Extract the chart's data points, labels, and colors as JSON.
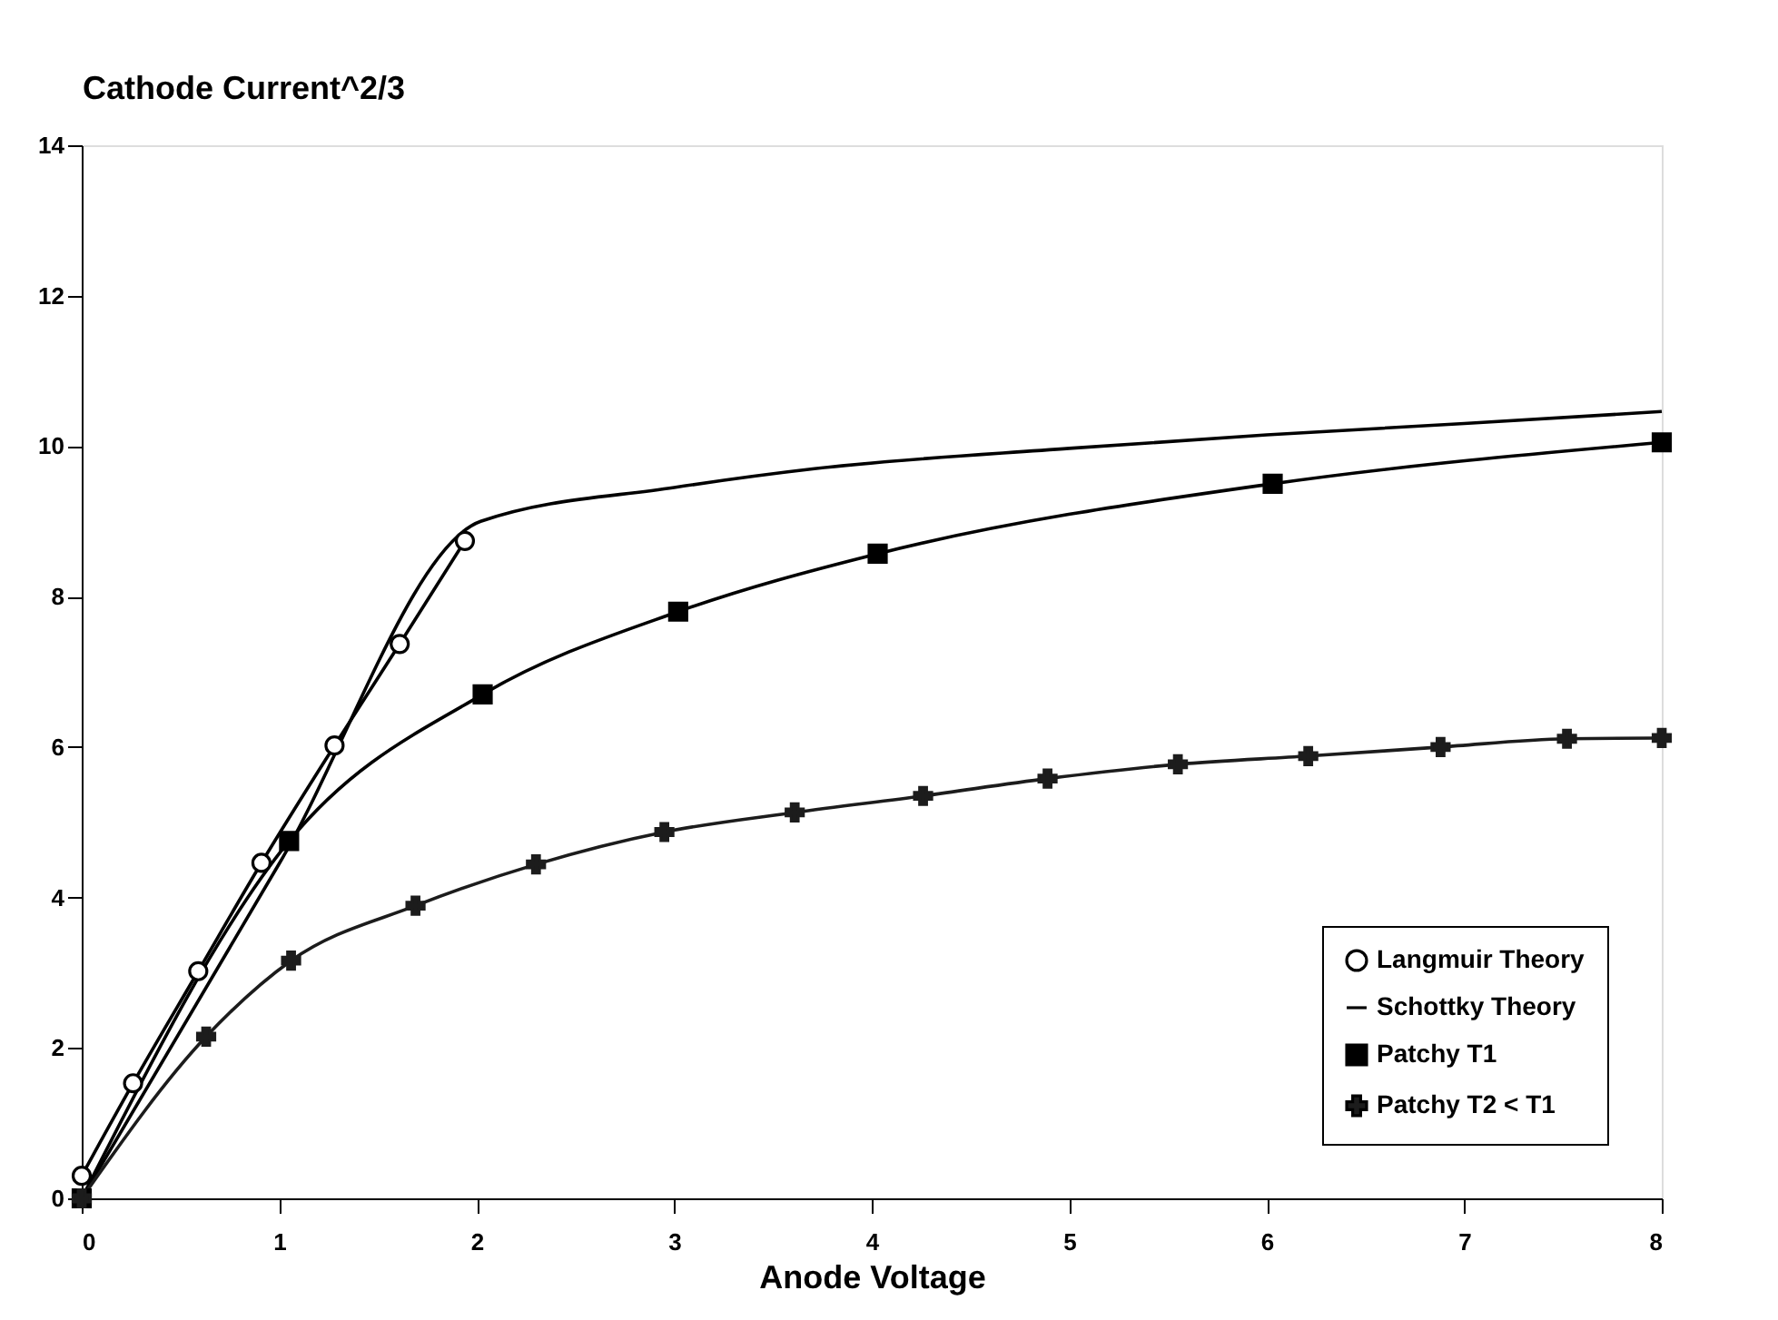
{
  "chart_data": {
    "type": "line",
    "xlabel": "Anode Voltage",
    "ylabel": "Cathode Current^2/3",
    "xlim": [
      0,
      8
    ],
    "xticks": [
      0,
      1,
      2,
      3,
      4,
      5,
      6,
      7,
      8
    ],
    "ylim": [
      0,
      14
    ],
    "yticks": [
      0,
      2,
      4,
      6,
      8,
      10,
      12,
      14
    ],
    "grid": false,
    "legend": "bottom right",
    "line_style": "solid",
    "series": [
      {
        "name": "Langmuir Theory",
        "color": "#000000",
        "marker": "circle",
        "x": [
          0,
          0.26,
          0.59,
          0.91,
          1.28,
          1.61,
          1.94
        ],
        "values": [
          0.3,
          1.53,
          3.02,
          4.46,
          6.02,
          7.37,
          8.74
        ]
      },
      {
        "name": "Schottky Theory",
        "color": "#000000",
        "marker": "none",
        "x": [
          0,
          1,
          2.02,
          3,
          3.71,
          5,
          6,
          7,
          8
        ],
        "values": [
          0,
          4.45,
          9.0,
          9.45,
          9.7,
          9.97,
          10.15,
          10.3,
          10.46
        ]
      },
      {
        "name": "Patchy T1",
        "color": "#000000",
        "marker": "square",
        "x": [
          0,
          1.05,
          2.03,
          3.02,
          4.03,
          6.03,
          8
        ],
        "values": [
          0,
          4.75,
          6.7,
          7.8,
          8.57,
          9.5,
          10.05
        ]
      },
      {
        "name": "Patchy T2 < T1",
        "color": "#1c1c1c",
        "marker": "cross",
        "x": [
          0,
          0.63,
          1.06,
          1.69,
          2.3,
          2.95,
          3.61,
          4.26,
          4.89,
          5.55,
          6.21,
          6.88,
          7.52,
          8
        ],
        "values": [
          0,
          2.15,
          3.16,
          3.89,
          4.44,
          4.87,
          5.13,
          5.35,
          5.58,
          5.77,
          5.88,
          6.0,
          6.11,
          6.12
        ]
      }
    ]
  }
}
